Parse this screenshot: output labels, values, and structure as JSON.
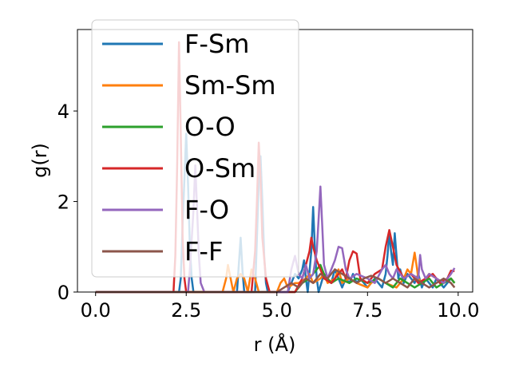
{
  "chart_data": {
    "type": "line",
    "xlabel": "r (Å)",
    "ylabel": "g(r)",
    "xlim": [
      -0.5,
      10.4
    ],
    "ylim": [
      0,
      5.8
    ],
    "xticks": [
      0.0,
      2.5,
      5.0,
      7.5,
      10.0
    ],
    "xtick_labels": [
      "0.0",
      "2.5",
      "5.0",
      "7.5",
      "10.0"
    ],
    "yticks": [
      0,
      2,
      4
    ],
    "ytick_labels": [
      "0",
      "2",
      "4"
    ],
    "grid": false,
    "legend_position": "top-left",
    "series": [
      {
        "name": "F-Sm",
        "color": "#1f77b4",
        "x": [
          0.0,
          2.3,
          2.35,
          2.4,
          2.45,
          2.5,
          2.55,
          2.6,
          2.65,
          2.7,
          3.9,
          3.95,
          4.0,
          4.05,
          4.1,
          4.4,
          4.45,
          4.5,
          4.55,
          4.6,
          4.65,
          4.7,
          4.75,
          5.3,
          5.4,
          5.5,
          5.6,
          5.7,
          5.75,
          5.8,
          5.85,
          5.95,
          6.0,
          6.05,
          6.1,
          6.15,
          6.3,
          6.4,
          6.5,
          6.6,
          6.7,
          6.8,
          6.9,
          7.0,
          7.1,
          7.2,
          7.3,
          7.5,
          7.7,
          7.8,
          7.9,
          8.0,
          8.05,
          8.1,
          8.15,
          8.2,
          8.25,
          8.3,
          8.35,
          8.4,
          8.5,
          8.6,
          8.7,
          8.8,
          8.9,
          9.0,
          9.1,
          9.2,
          9.3,
          9.4,
          9.5,
          9.6,
          9.7,
          9.8,
          9.9
        ],
        "y": [
          0,
          0,
          0.3,
          1.5,
          2.5,
          3.5,
          2.4,
          1.0,
          0.3,
          0,
          0,
          0.6,
          1.2,
          0.5,
          0,
          0,
          1.2,
          2.4,
          3.0,
          2.0,
          0.8,
          0.2,
          0,
          0,
          0.2,
          0.4,
          0.3,
          0.5,
          0.7,
          0.3,
          0,
          0.9,
          1.88,
          0.9,
          0.3,
          0,
          0.4,
          0.3,
          0.2,
          0.5,
          0.3,
          0.1,
          0.3,
          0.2,
          0.4,
          0.2,
          0.3,
          0.1,
          0.3,
          0.2,
          0.1,
          0.4,
          0.8,
          1.32,
          0.9,
          0.6,
          1.3,
          0.8,
          0.3,
          0.5,
          0.2,
          0.4,
          0.3,
          0.2,
          0.4,
          0.1,
          0.3,
          0.2,
          0.1,
          0.3,
          0.2,
          0.1,
          0.2,
          0.3,
          0.2
        ]
      },
      {
        "name": "Sm-Sm",
        "color": "#ff7f0e",
        "x": [
          0.0,
          3.5,
          3.6,
          3.65,
          3.7,
          3.75,
          3.8,
          3.9,
          4.0,
          4.1,
          4.2,
          4.3,
          4.4,
          4.5,
          5.0,
          5.1,
          5.2,
          5.3,
          5.5,
          5.6,
          5.8,
          5.9,
          6.0,
          6.2,
          6.3,
          6.4,
          6.6,
          6.7,
          6.8,
          7.0,
          7.2,
          7.5,
          7.6,
          7.8,
          8.0,
          8.3,
          8.4,
          8.5,
          8.6,
          8.7,
          8.8,
          8.85,
          8.9,
          9.0,
          9.2,
          9.4,
          9.6,
          9.8,
          9.9
        ],
        "y": [
          0,
          0,
          0.3,
          0.6,
          0.4,
          0.2,
          0,
          0.3,
          0.4,
          0.3,
          0,
          0.5,
          0.3,
          0,
          0,
          0.2,
          0.3,
          0.1,
          0.2,
          0.2,
          0.3,
          0.4,
          0.2,
          0.3,
          0.4,
          0.2,
          0.3,
          0.5,
          0.2,
          0.3,
          0.2,
          0.1,
          0.2,
          0.3,
          0.2,
          0.1,
          0.2,
          0.3,
          0.5,
          0.4,
          0.87,
          0.6,
          0.3,
          0.2,
          0.4,
          0.3,
          0.2,
          0.3,
          0.2
        ]
      },
      {
        "name": "O-O",
        "color": "#2ca02c",
        "x": [
          0.0,
          5.5,
          5.7,
          5.9,
          6.0,
          6.1,
          6.2,
          6.3,
          6.4,
          6.5,
          6.7,
          7.0,
          7.2,
          7.5,
          7.8,
          8.0,
          8.2,
          8.4,
          8.6,
          8.8,
          9.0,
          9.2,
          9.4,
          9.6,
          9.8,
          9.9
        ],
        "y": [
          0,
          0,
          0.2,
          0.3,
          0.4,
          0.5,
          0.6,
          0.4,
          0.3,
          0.2,
          0.3,
          0.2,
          0.3,
          0.2,
          0.3,
          0.2,
          0.1,
          0.3,
          0.2,
          0.1,
          0.2,
          0.3,
          0.1,
          0.2,
          0.3,
          0.2
        ]
      },
      {
        "name": "O-Sm",
        "color": "#d62728",
        "x": [
          0.0,
          2.15,
          2.2,
          2.25,
          2.3,
          2.35,
          2.4,
          2.45,
          2.5,
          4.3,
          4.4,
          4.45,
          4.5,
          4.55,
          4.6,
          4.7,
          4.8,
          5.5,
          5.7,
          5.8,
          5.9,
          5.95,
          6.0,
          6.1,
          6.2,
          6.3,
          6.5,
          6.7,
          6.8,
          6.9,
          7.0,
          7.1,
          7.2,
          7.3,
          7.5,
          7.7,
          7.9,
          8.0,
          8.1,
          8.2,
          8.3,
          8.5,
          8.7,
          8.9,
          9.1,
          9.3,
          9.5,
          9.7,
          9.8,
          9.9
        ],
        "y": [
          0,
          0,
          0.8,
          2.8,
          5.52,
          3.5,
          1.2,
          0.3,
          0,
          0,
          0.9,
          2.0,
          3.3,
          2.5,
          1.2,
          0.3,
          0,
          0,
          0.3,
          0.6,
          0.9,
          1.2,
          1.0,
          0.7,
          0.5,
          0.3,
          0.2,
          0.4,
          0.5,
          0.3,
          0.7,
          0.9,
          0.85,
          0.3,
          0.2,
          0.4,
          0.5,
          1.0,
          1.37,
          1.0,
          0.6,
          0.3,
          0.4,
          0.2,
          0.3,
          0.4,
          0.2,
          0.3,
          0.47,
          0.46
        ]
      },
      {
        "name": "F-O",
        "color": "#9467bd",
        "x": [
          0.0,
          2.55,
          2.6,
          2.7,
          2.75,
          2.8,
          2.85,
          2.9,
          3.0,
          5.3,
          5.4,
          5.5,
          5.6,
          5.7,
          5.8,
          5.9,
          6.0,
          6.1,
          6.15,
          6.2,
          6.25,
          6.3,
          6.4,
          6.5,
          6.6,
          6.7,
          6.8,
          6.9,
          7.0,
          7.2,
          7.5,
          7.7,
          7.9,
          8.0,
          8.1,
          8.2,
          8.3,
          8.5,
          8.7,
          8.9,
          8.95,
          9.0,
          9.1,
          9.2,
          9.4,
          9.6,
          9.8,
          9.9
        ],
        "y": [
          0,
          0,
          0.5,
          1.8,
          2.8,
          1.8,
          0.8,
          0.2,
          0,
          0,
          0.5,
          0.8,
          0.4,
          0.3,
          0.6,
          0.3,
          0.4,
          0.9,
          1.6,
          2.33,
          1.5,
          0.6,
          0.3,
          0.5,
          0.7,
          1.0,
          0.97,
          0.5,
          0.3,
          0.4,
          0.3,
          0.2,
          0.5,
          0.6,
          0.4,
          0.3,
          0.5,
          0.3,
          0.4,
          0.3,
          0.82,
          0.5,
          0.3,
          0.4,
          0.3,
          0.2,
          0.4,
          0.53
        ]
      },
      {
        "name": "F-F",
        "color": "#8c564b",
        "x": [
          0.0,
          5.0,
          5.2,
          5.4,
          5.6,
          5.8,
          6.0,
          6.2,
          6.4,
          6.6,
          6.8,
          7.0,
          7.2,
          7.4,
          7.6,
          7.8,
          8.0,
          8.2,
          8.4,
          8.6,
          8.8,
          9.0,
          9.2,
          9.4,
          9.6,
          9.8,
          9.9
        ],
        "y": [
          0,
          0,
          0.1,
          0.2,
          0.1,
          0.3,
          0.2,
          0.4,
          0.3,
          0.5,
          0.4,
          0.3,
          0.2,
          0.3,
          0.36,
          0.3,
          0.2,
          0.3,
          0.2,
          0.1,
          0.3,
          0.2,
          0.1,
          0.2,
          0.3,
          0.2,
          0.1
        ]
      }
    ]
  }
}
